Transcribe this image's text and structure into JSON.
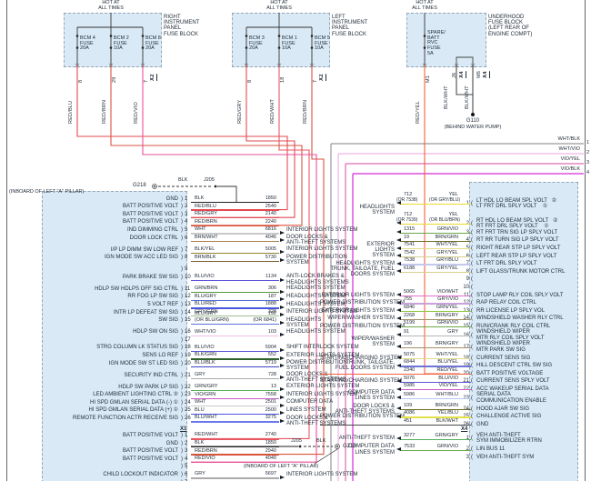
{
  "palette": {
    "background": "#ffffff",
    "block_fill": "#d9eaf6",
    "block_border": "#94a6b6",
    "text": "#222d3a",
    "wire_red": "#e34a52",
    "wire_red_brn": "#d9543c",
    "wire_red_vio": "#ea4f9a",
    "wire_red_wht": "#e85560",
    "wire_red_yel": "#f2603c",
    "wire_black": "#222222",
    "wire_yellow": "#ecd92c",
    "bus_wht_blk": "#9a9a9a",
    "bus_wht_vio": "#f0b4e6",
    "bus_vio_yel": "#e06ab4",
    "bus_vio_blk": "#d42ad4"
  },
  "fuse_blocks": [
    {
      "hot": "HOT AT\nALL TIMES",
      "label": "RIGHT\nINSTRUMENT\nPANEL\nFUSE BLOCK",
      "fuses": [
        "BCM 4\nFUSE\n20A",
        "BCM 2\nFUSE\n10A",
        "BCM 8\nFUSE\n20A"
      ],
      "pins": [
        "8",
        "29",
        "7"
      ],
      "pin_tag": "X2",
      "wires": [
        "RED/BLU",
        "RED/BRN",
        "RED/VIO"
      ]
    },
    {
      "hot": "HOT AT\nALL TIMES",
      "label": "LEFT\nINSTRUMENT\nPANEL\nFUSE BLOCK",
      "fuses": [
        "BCM 3\nFUSE\n20A",
        "BCM 1\nFUSE\n10A",
        "BCM 5\nFUSE\n10A"
      ],
      "pins": [
        "8",
        "18",
        "7"
      ],
      "pin_tag": "X2",
      "wires": [
        "RED/GRY",
        "RED/WHT",
        "RED/BRN"
      ]
    },
    {
      "hot": "HOT AT\nALL TIMES",
      "label": "UNDERHOOD\nFUSE BLOCK\n(LEFT REAR OF\nENGINE COMPT)",
      "fuses": [
        "SPARE/\nBATT\nRVC\nFUSE\n5A"
      ],
      "pins": [
        "M1"
      ],
      "wires": [
        "RED/YEL"
      ],
      "extra_pins": [
        "J6",
        "M6"
      ],
      "extra_tag": "X4",
      "extra_wires": [
        "BLK/WHT",
        "BLK/WHT"
      ],
      "ground": {
        "name": "G110",
        "loc": "(BEHIND WATER PUMP)"
      }
    }
  ],
  "bus_wires": [
    {
      "name": "WHT/BLK",
      "pin": "1",
      "color": "#9a9a9a"
    },
    {
      "name": "WHT/VIO",
      "pin": "2",
      "color": "#f0b4e6"
    },
    {
      "name": "VIO/YEL",
      "pin": "3",
      "color": "#e06ab4"
    },
    {
      "name": "VIO/BLK",
      "pin": "4",
      "color": "#d42ad4"
    }
  ],
  "grounds": {
    "top": {
      "name": "G218",
      "splice": "J205",
      "wire": "BLK",
      "note": "(INBOARD OF LEFT \"A\" PILLAR)"
    },
    "bottom": {
      "name": "G218",
      "splice": "J205",
      "wire": "BLK",
      "note": "(INBOARD OF LEFT \"A\" PILLAR)"
    }
  },
  "left_block": {
    "connector_tag": "X1",
    "rows": [
      {
        "pin": "1",
        "label": "GND",
        "color_name": "BLK",
        "circuit": "1850",
        "color": "#222222"
      },
      {
        "pin": "2",
        "label": "BATT POSITIVE VOLT",
        "color_name": "RED/BLU",
        "circuit": "2540",
        "color": "#e34a52"
      },
      {
        "pin": "3",
        "label": "BATT POSITIVE VOLT",
        "color_name": "RED/GRY",
        "circuit": "2140",
        "color": "#e34a52"
      },
      {
        "pin": "4",
        "label": "BATT POSITIVE VOLT",
        "color_name": "RED/BRN",
        "circuit": "2240",
        "color": "#d9543c"
      },
      {
        "pin": "5",
        "label": "IND DIMMING CTRL",
        "color_name": "WHT",
        "circuit": "6816",
        "color": "#c9c9c9",
        "system": "INTERIOR LIGHTS SYSTEM"
      },
      {
        "pin": "6",
        "label": "DOOR LOCK CTRL",
        "color_name": "BRN/WHT",
        "circuit": "4046",
        "color": "#ad7f4a",
        "system": "DOOR LOCKS &\nANTI-THEFT SYSTEMS"
      },
      {
        "pin": "7",
        "label": "I/P LP DIMM SW LOW REF",
        "color_name": "BLK/YEL",
        "circuit": "5005",
        "color": "#8f8430",
        "system": "INTERIOR LIGHTS SYSTEM"
      },
      {
        "pin": "8",
        "label": "IGN MODE SW ACC LED SIG",
        "color_name": "BRN/BLK",
        "circuit": "5730",
        "color": "#7c5b33",
        "system": "POWER DISTRIBUTION\nSYSTEM"
      },
      {
        "pin": "9",
        "blank": true
      },
      {
        "pin": "10",
        "label": "PARK BRAKE SW SIG",
        "color_name": "BLU/VIO",
        "circuit": "1134",
        "color": "#5d54d8",
        "system": "ANTI-LOCK BRAKES &\nHEADLIGHTS SYSTEMS"
      },
      {
        "pin": "11",
        "label": "HDLP SW HDLPS OFF SIG CTRL",
        "color_name": "GRN/BRN",
        "circuit": "306",
        "color": "#55953c",
        "system": "HEADLIGHTS SYSTEM"
      },
      {
        "pin": "12",
        "label": "RR FOG LP SW SIG",
        "color_name": "BLU/GRY",
        "circuit": "187",
        "color": "#5a6fd8",
        "system": "HEADLIGHTS SYSTEM"
      },
      {
        "pin": "13",
        "label": "5 VOLT REF",
        "color_name": "BLU/RED",
        "circuit": "1888",
        "color": "#4956e0",
        "system": "HEADLIGHTS SYSTEM"
      },
      {
        "pin": "14",
        "label": "INTR LP DEFEAT SW SIG",
        "color_name": "GRY/GRN",
        "circuit": "328",
        "color": "#9dbd8f",
        "system": "INTERIOR LIGHTS SYSTEM"
      },
      {
        "pin": "15",
        "label": "SW SIG",
        "color_name": "BLU/GRY",
        "color_name2": "(OR BLU/GRN)",
        "circuit": "192",
        "circuit2": "(OR 6841)",
        "color": "#5a6fd8",
        "system": "HEADLIGHTS\nSYSTEM"
      },
      {
        "pin": "16",
        "label": "HDLP SW ON SIG",
        "color_name": "WHT/VIO",
        "circuit": "103",
        "color": "#eebfe8",
        "system": "HEADLIGHTS SYSTEM"
      },
      {
        "pin": "17",
        "blank": true
      },
      {
        "pin": "18",
        "label": "STRG COLUMN LK STATUS SIG",
        "color_name": "BLU/VIO",
        "circuit": "5904",
        "color": "#5d54d8",
        "system": "SHIFT INTERLOCK SYSTEM"
      },
      {
        "pin": "19",
        "label": "SENS LO REF",
        "color_name": "BLK/GRN",
        "circuit": "552",
        "color": "#30622c",
        "system": "EXTERIOR LIGHTS SYSTEM"
      },
      {
        "pin": "20",
        "label": "IGN MODE SW ST LED SIG",
        "color_name": "BLU/BLK",
        "circuit": "5719",
        "color": "#3c44c8",
        "system": "POWER DISTRIBUTION\nSYSTEM"
      },
      {
        "pin": "21",
        "label": "SECURITY IND CTRL",
        "color_name": "GRY",
        "circuit": "728",
        "color": "#ababab",
        "system": "DOOR LOCKS &\nANTI-THEFT SYSTEMS"
      },
      {
        "pin": "22",
        "label": "HDLP SW PARK LP SIG",
        "color_name": "GRN/GRY",
        "circuit": "13",
        "color": "#55b05c",
        "system": "EXTERIOR LIGHTS SYSTEM"
      },
      {
        "pin": "23",
        "label": "LED AMBIENT LIGHTING CTRL ②",
        "color_name": "VIO/GRN",
        "circuit": "7558",
        "color": "#c85cc8",
        "system": "INTERIOR LIGHTS SYSTEM"
      },
      {
        "pin": "24",
        "label": "HI SPD GMLAN SERIAL DATA (-) ①",
        "color_name": "WHT",
        "circuit": "2501",
        "color": "#c9c9c9",
        "system": "COMPUTER DATA"
      },
      {
        "pin": "25",
        "label": "HI SPD GMLAN SERIAL DATA (+) ①",
        "color_name": "BLU",
        "circuit": "2500",
        "color": "#4956e0",
        "system": "LINES SYSTEM"
      },
      {
        "pin": "26",
        "label": "REMOTE FUNCTION ACTR RECEIVE SIG",
        "color_name": "BLU/WHT",
        "circuit": "3275",
        "color": "#6b79e8",
        "system": "DOOR LOCKS &\nANTI-THEFT SYSTEMS"
      },
      {
        "tag": "X1"
      },
      {
        "pin": "1",
        "label": "BATT POSITIVE VOLT",
        "color_name": "RED/WHT",
        "circuit": "2740",
        "color": "#e85560"
      },
      {
        "pin": "2",
        "label": "GND",
        "color_name": "BLK",
        "circuit": "1850",
        "color": "#222222"
      },
      {
        "pin": "3",
        "label": "BATT POSITIVE VOLT",
        "color_name": "RED/BRN",
        "circuit": "2940",
        "color": "#d9543c"
      },
      {
        "pin": "4",
        "label": "BATT POSITIVE VOLT",
        "color_name": "RED/VIO",
        "circuit": "4040",
        "color": "#ea4f9a"
      },
      {
        "pin": "5",
        "blank": true
      },
      {
        "pin": "6",
        "label": "CHILD LOCKOUT INDICATOR",
        "color_name": "GRY",
        "circuit": "5697",
        "color": "#ababab",
        "system": "INTERIOR LIGHTS SYSTEM"
      },
      {
        "pin": "7",
        "blank": true
      }
    ]
  },
  "right_block": {
    "connector_tag": "X4",
    "rows": [
      {
        "pin": "1",
        "desc": "LT HDL LO BEAM SPL VOLT   ②\nLT FRT DRL SPLY VOLT    ①",
        "color_name": "YEL",
        "color_name2": "(OR GRY/BLU)",
        "circuit": "712",
        "circuit2": "(OR 7538)",
        "color": "#ecd92c",
        "system": "HEADLIGHTS\nSYSTEM",
        "sys_pos": "low"
      },
      {
        "pin": "2",
        "desc": "RT HDL LO BEAM SPL VOLT   ②\nRT FRT DRL SPLY VOLT    ①",
        "color_name": "YEL",
        "color_name2": "(OR BLU/BRN)",
        "circuit": "712",
        "circuit2": "(OR 7539)",
        "color": "#ecd92c"
      },
      {
        "pin": "3",
        "desc": "RT FRT TRN SIG LP SPLY VOLT",
        "color_name": "GRN/VIO",
        "circuit": "1315",
        "color": "#6aa848"
      },
      {
        "pin": "4",
        "desc": "RT RR TURN SIG LP SPLY VOLT",
        "color_name": "BRN/GRN",
        "circuit": "19",
        "color": "#6d6d28",
        "system": "EXTERIOR\nLIGHTS\nSYSTEM",
        "sys_pos": "low"
      },
      {
        "pin": "5",
        "desc": "RIGHT REAR STP LP SPLY VOLT",
        "color_name": "WHT/YEL",
        "circuit": "7541",
        "color": "#e3dc8a"
      },
      {
        "pin": "6",
        "desc": "LEFT REAR STP LP SPLY VOLT",
        "color_name": "GRY/YEL",
        "circuit": "7542",
        "color": "#d6d08e"
      },
      {
        "pin": "7",
        "desc": "LT FRT DRL SPLY VOLT",
        "color_name": "GRY/BLU",
        "circuit": "7538",
        "color": "#c3c8ec",
        "system": "HEADLIGHTS SYSTEM"
      },
      {
        "pin": "8",
        "desc": "LIFT GLASS/TRUNK MOTOR CTRL",
        "color_name": "GRY/YEL",
        "circuit": "6188",
        "color": "#d6d08e",
        "system": "TRUNK, TAILGATE, FUEL\nDOORS SYSTEM"
      },
      {
        "pin": "9",
        "blank": true
      },
      {
        "pin": "10",
        "blank": true
      },
      {
        "pin": "11",
        "desc": "STOP LAMP RLY COIL SPLY VOLT",
        "color_name": "VIO/WHT",
        "circuit": "5065",
        "color": "#e070d4",
        "system": "EXTERIOR LIGHTS SYSTEM"
      },
      {
        "pin": "12",
        "desc": "RAP RELAY COIL CTRL",
        "color_name": "GRY/VIO",
        "circuit": "755",
        "color": "#c7a3da",
        "system": "POWER DISTRIBUTION SYSTEM"
      },
      {
        "pin": "13",
        "desc": "RR LICENSE LP SPLY VOL",
        "color_name": "GRN/YEL",
        "circuit": "6846",
        "color": "#8fc63e",
        "system": "EXTERIOR LIGHTS SYSTEM"
      },
      {
        "pin": "14",
        "desc": "WINDSHIELD WASHER RLY CTRL",
        "color_name": "BRN/GRY",
        "circuit": "2268",
        "color": "#a3906a",
        "system": "WIPER/WASHER SYSTEM"
      },
      {
        "pin": "15",
        "desc": "RUN/CRANK RLY COIL CTRL",
        "color_name": "GRN/VIO",
        "circuit": "5199",
        "color": "#6aa848",
        "system": "POWER DISTRIBUTION SYSTEM"
      },
      {
        "pin": "16",
        "desc": "WINDSHIELD WIPER\nMTR RLY COIL SPLY VOLT",
        "color_name": "GRY",
        "circuit": "91",
        "color": "#b5b5b5",
        "system": "WIPER/WASHER\nSYSTEM",
        "sys_pos": "low"
      },
      {
        "pin": "17",
        "desc": "WINDSHIELD WIPER\nMTR PARK SW SIG",
        "color_name": "BRN/GRY",
        "circuit": "196",
        "color": "#a3906a"
      },
      {
        "pin": "18",
        "desc": "CURRENT SENS SIG",
        "color_name": "WHT/YEL",
        "circuit": "5075",
        "color": "#e3dc8a",
        "system": "STARTING/CHARGING SYSTEM"
      },
      {
        "pin": "19",
        "desc": "HILL DESCENT CTRL SW SIG",
        "color_name": "BLU/YEL",
        "circuit": "6844",
        "color": "#6f74d8",
        "system": "TRUNK, TAILGATE,\nFUEL DOORS SYSTEM"
      },
      {
        "pin": "20",
        "desc": "BATT POSITIVE VOLTAGE",
        "color_name": "RED/YEL",
        "circuit": "2340",
        "color": "#f2603c",
        "noarrow": true
      },
      {
        "pin": "21",
        "desc": "CURRENT SENS SPLY VOLT",
        "color_name": "BLU/VIO",
        "circuit": "5076",
        "color": "#5d54d8",
        "system": "STARTING/CHARGING SYSTEM"
      },
      {
        "pin": "22",
        "desc": "ACC WAKEUP SERIAL DATA",
        "color_name": "VIO/YEL",
        "circuit": "5985",
        "color": "#cf58c0",
        "system": "COMPUTER DATA\nLINES SYSTEM",
        "sys_pos": "low"
      },
      {
        "pin": "23",
        "desc": "SERIAL DATA\nCOMMUNICATION ENABLE",
        "color_name": "WHT/BLU",
        "circuit": "5986",
        "color": "#b9c6f0"
      },
      {
        "pin": "24",
        "desc": "HOOD AJAR SW SIG",
        "color_name": "BRN/GRN",
        "circuit": "109",
        "color": "#6d6d28",
        "system": "DOOR LOCKS &\nANTI-THEFT SYSTEMS"
      },
      {
        "pin": "25",
        "desc": "CHALLENGE ACTIVE SIG",
        "color_name": "YEL/BLU",
        "circuit": "4086",
        "color": "#e3e04a",
        "system": "POWER DISTRIBUTION SYSTEM"
      },
      {
        "pin": "26",
        "desc": "GND",
        "color_name": "BLK/WHT",
        "circuit": "451",
        "color": "#4a4a4a",
        "noarrow": true
      },
      {
        "tag": "X4"
      },
      {
        "pin": "1",
        "desc": "VEH ANTI-THEFT\nSYM IMMOBILIZER RTRN",
        "color_name": "GRN/GRY",
        "circuit": "3277",
        "color": "#55b05c",
        "system": "ANTI-THEFT SYSTEM"
      },
      {
        "pin": "2",
        "desc": "LIN BUS 11",
        "color_name": "GRN/VIO",
        "circuit": "7533",
        "color": "#6aa848",
        "system": "COMPUTER DATA\nLINES SYSTEM"
      },
      {
        "pin": "3",
        "desc": "VEH ANTI-THEFT SYM",
        "blankwire": true
      }
    ]
  }
}
